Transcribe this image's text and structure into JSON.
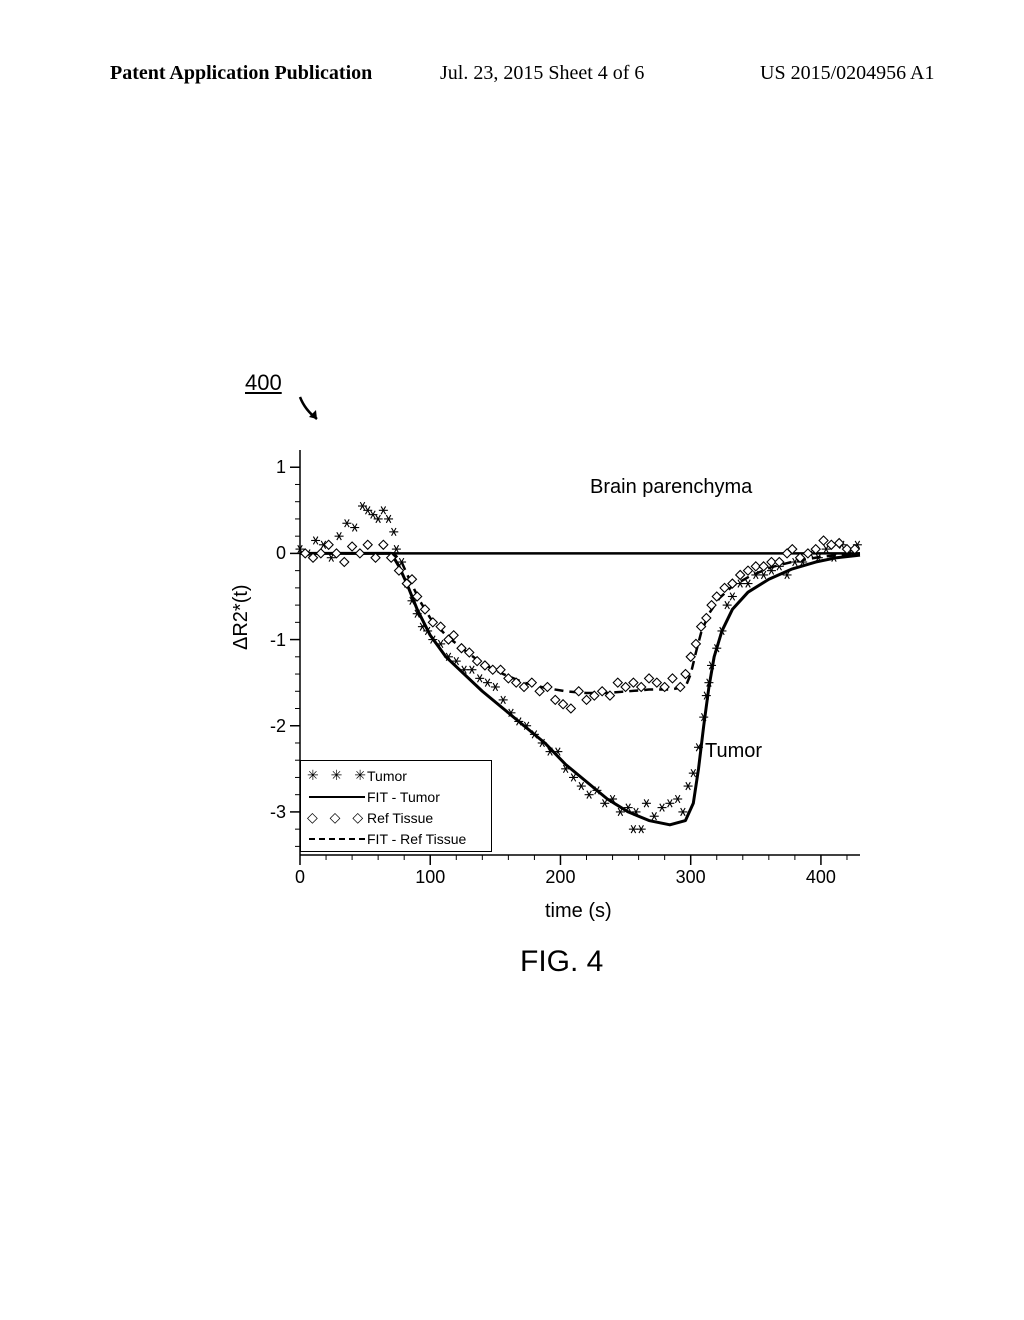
{
  "header": {
    "left": "Patent Application Publication",
    "mid": "Jul. 23, 2015  Sheet 4 of 6",
    "right": "US 2015/0204956 A1"
  },
  "figure": {
    "ref_number": "400",
    "caption": "FIG. 4",
    "annotations": {
      "brain": "Brain parenchyma",
      "tumor": "Tumor"
    },
    "chart": {
      "type": "scatter-with-fit",
      "xlabel": "time (s)",
      "ylabel": "ΔR2*(t)",
      "xlim": [
        0,
        430
      ],
      "ylim": [
        -3.5,
        1.2
      ],
      "xticks": [
        0,
        100,
        200,
        300,
        400
      ],
      "yticks": [
        -3,
        -2,
        -1,
        0,
        1
      ],
      "background_color": "#ffffff",
      "axis_color": "#000000",
      "legend": {
        "rows": [
          {
            "symbol": "asterisk",
            "label": "Tumor"
          },
          {
            "symbol": "solid",
            "label": "FIT - Tumor"
          },
          {
            "symbol": "diamond",
            "label": "Ref Tissue"
          },
          {
            "symbol": "dash",
            "label": "FIT - Ref Tissue"
          }
        ]
      },
      "series": {
        "tumor_points": {
          "marker": "asterisk",
          "color": "#000000",
          "data": [
            [
              0,
              0.05
            ],
            [
              6,
              0.0
            ],
            [
              12,
              0.15
            ],
            [
              18,
              0.1
            ],
            [
              24,
              -0.05
            ],
            [
              30,
              0.2
            ],
            [
              36,
              0.35
            ],
            [
              42,
              0.3
            ],
            [
              48,
              0.55
            ],
            [
              52,
              0.5
            ],
            [
              56,
              0.45
            ],
            [
              60,
              0.4
            ],
            [
              64,
              0.5
            ],
            [
              68,
              0.4
            ],
            [
              72,
              0.25
            ],
            [
              74,
              0.05
            ],
            [
              78,
              -0.1
            ],
            [
              82,
              -0.35
            ],
            [
              86,
              -0.55
            ],
            [
              90,
              -0.7
            ],
            [
              94,
              -0.85
            ],
            [
              98,
              -0.9
            ],
            [
              102,
              -1.0
            ],
            [
              108,
              -1.05
            ],
            [
              114,
              -1.2
            ],
            [
              120,
              -1.25
            ],
            [
              126,
              -1.35
            ],
            [
              132,
              -1.35
            ],
            [
              138,
              -1.45
            ],
            [
              144,
              -1.5
            ],
            [
              150,
              -1.55
            ],
            [
              156,
              -1.7
            ],
            [
              162,
              -1.85
            ],
            [
              168,
              -1.95
            ],
            [
              174,
              -2.0
            ],
            [
              180,
              -2.1
            ],
            [
              186,
              -2.2
            ],
            [
              192,
              -2.3
            ],
            [
              198,
              -2.3
            ],
            [
              204,
              -2.5
            ],
            [
              210,
              -2.6
            ],
            [
              216,
              -2.7
            ],
            [
              222,
              -2.8
            ],
            [
              228,
              -2.75
            ],
            [
              234,
              -2.9
            ],
            [
              240,
              -2.85
            ],
            [
              246,
              -3.0
            ],
            [
              252,
              -2.95
            ],
            [
              256,
              -3.2
            ],
            [
              258,
              -3.0
            ],
            [
              262,
              -3.2
            ],
            [
              266,
              -2.9
            ],
            [
              272,
              -3.05
            ],
            [
              278,
              -2.95
            ],
            [
              284,
              -2.9
            ],
            [
              290,
              -2.85
            ],
            [
              294,
              -3.0
            ],
            [
              298,
              -2.7
            ],
            [
              302,
              -2.55
            ],
            [
              306,
              -2.25
            ],
            [
              310,
              -1.9
            ],
            [
              312,
              -1.65
            ],
            [
              314,
              -1.5
            ],
            [
              316,
              -1.3
            ],
            [
              320,
              -1.1
            ],
            [
              324,
              -0.9
            ],
            [
              328,
              -0.6
            ],
            [
              332,
              -0.5
            ],
            [
              338,
              -0.35
            ],
            [
              344,
              -0.35
            ],
            [
              350,
              -0.25
            ],
            [
              356,
              -0.25
            ],
            [
              362,
              -0.2
            ],
            [
              368,
              -0.15
            ],
            [
              374,
              -0.25
            ],
            [
              380,
              -0.1
            ],
            [
              386,
              -0.1
            ],
            [
              392,
              0.0
            ],
            [
              398,
              -0.05
            ],
            [
              404,
              0.05
            ],
            [
              410,
              -0.05
            ],
            [
              416,
              0.1
            ],
            [
              422,
              0.0
            ],
            [
              428,
              0.1
            ]
          ]
        },
        "ref_points": {
          "marker": "diamond",
          "color": "#000000",
          "data": [
            [
              4,
              0.0
            ],
            [
              10,
              -0.05
            ],
            [
              16,
              0.0
            ],
            [
              22,
              0.1
            ],
            [
              28,
              0.0
            ],
            [
              34,
              -0.1
            ],
            [
              40,
              0.08
            ],
            [
              46,
              0.0
            ],
            [
              52,
              0.1
            ],
            [
              58,
              -0.05
            ],
            [
              64,
              0.1
            ],
            [
              70,
              -0.05
            ],
            [
              76,
              -0.2
            ],
            [
              82,
              -0.35
            ],
            [
              86,
              -0.3
            ],
            [
              90,
              -0.5
            ],
            [
              96,
              -0.65
            ],
            [
              102,
              -0.8
            ],
            [
              108,
              -0.85
            ],
            [
              114,
              -1.0
            ],
            [
              118,
              -0.95
            ],
            [
              124,
              -1.1
            ],
            [
              130,
              -1.15
            ],
            [
              136,
              -1.25
            ],
            [
              142,
              -1.3
            ],
            [
              148,
              -1.35
            ],
            [
              154,
              -1.35
            ],
            [
              160,
              -1.45
            ],
            [
              166,
              -1.5
            ],
            [
              172,
              -1.55
            ],
            [
              178,
              -1.5
            ],
            [
              184,
              -1.6
            ],
            [
              190,
              -1.55
            ],
            [
              196,
              -1.7
            ],
            [
              202,
              -1.75
            ],
            [
              208,
              -1.8
            ],
            [
              214,
              -1.6
            ],
            [
              220,
              -1.7
            ],
            [
              226,
              -1.65
            ],
            [
              232,
              -1.6
            ],
            [
              238,
              -1.65
            ],
            [
              244,
              -1.5
            ],
            [
              250,
              -1.55
            ],
            [
              256,
              -1.5
            ],
            [
              262,
              -1.55
            ],
            [
              268,
              -1.45
            ],
            [
              274,
              -1.5
            ],
            [
              280,
              -1.55
            ],
            [
              286,
              -1.45
            ],
            [
              292,
              -1.55
            ],
            [
              296,
              -1.4
            ],
            [
              300,
              -1.2
            ],
            [
              304,
              -1.05
            ],
            [
              308,
              -0.85
            ],
            [
              312,
              -0.75
            ],
            [
              316,
              -0.6
            ],
            [
              320,
              -0.5
            ],
            [
              326,
              -0.4
            ],
            [
              332,
              -0.35
            ],
            [
              338,
              -0.25
            ],
            [
              344,
              -0.2
            ],
            [
              350,
              -0.15
            ],
            [
              356,
              -0.15
            ],
            [
              362,
              -0.1
            ],
            [
              368,
              -0.1
            ],
            [
              374,
              0.0
            ],
            [
              378,
              0.05
            ],
            [
              384,
              -0.05
            ],
            [
              390,
              0.0
            ],
            [
              396,
              0.05
            ],
            [
              402,
              0.15
            ],
            [
              408,
              0.1
            ],
            [
              414,
              0.12
            ],
            [
              420,
              0.05
            ],
            [
              426,
              0.05
            ]
          ]
        },
        "fit_tumor": {
          "style": "solid",
          "width": 3,
          "color": "#000000",
          "data": [
            [
              0,
              0.0
            ],
            [
              60,
              0.0
            ],
            [
              70,
              0.0
            ],
            [
              76,
              -0.15
            ],
            [
              82,
              -0.35
            ],
            [
              90,
              -0.65
            ],
            [
              100,
              -0.95
            ],
            [
              112,
              -1.2
            ],
            [
              126,
              -1.4
            ],
            [
              140,
              -1.6
            ],
            [
              156,
              -1.8
            ],
            [
              172,
              -2.0
            ],
            [
              188,
              -2.2
            ],
            [
              204,
              -2.45
            ],
            [
              220,
              -2.65
            ],
            [
              236,
              -2.85
            ],
            [
              252,
              -3.0
            ],
            [
              268,
              -3.1
            ],
            [
              284,
              -3.15
            ],
            [
              296,
              -3.1
            ],
            [
              302,
              -2.9
            ],
            [
              306,
              -2.5
            ],
            [
              310,
              -2.0
            ],
            [
              314,
              -1.55
            ],
            [
              318,
              -1.2
            ],
            [
              324,
              -0.9
            ],
            [
              332,
              -0.65
            ],
            [
              344,
              -0.45
            ],
            [
              360,
              -0.3
            ],
            [
              378,
              -0.18
            ],
            [
              396,
              -0.1
            ],
            [
              412,
              -0.05
            ],
            [
              430,
              -0.02
            ]
          ]
        },
        "fit_ref": {
          "style": "dashed",
          "width": 2.5,
          "color": "#000000",
          "data": [
            [
              0,
              0.0
            ],
            [
              60,
              0.0
            ],
            [
              72,
              0.0
            ],
            [
              78,
              -0.1
            ],
            [
              84,
              -0.3
            ],
            [
              92,
              -0.55
            ],
            [
              100,
              -0.75
            ],
            [
              112,
              -0.95
            ],
            [
              126,
              -1.12
            ],
            [
              140,
              -1.28
            ],
            [
              156,
              -1.4
            ],
            [
              172,
              -1.5
            ],
            [
              188,
              -1.56
            ],
            [
              204,
              -1.6
            ],
            [
              220,
              -1.62
            ],
            [
              236,
              -1.62
            ],
            [
              252,
              -1.6
            ],
            [
              268,
              -1.58
            ],
            [
              284,
              -1.58
            ],
            [
              296,
              -1.55
            ],
            [
              300,
              -1.4
            ],
            [
              304,
              -1.15
            ],
            [
              308,
              -0.92
            ],
            [
              314,
              -0.7
            ],
            [
              322,
              -0.52
            ],
            [
              332,
              -0.38
            ],
            [
              346,
              -0.26
            ],
            [
              362,
              -0.16
            ],
            [
              380,
              -0.09
            ],
            [
              400,
              -0.04
            ],
            [
              420,
              -0.01
            ],
            [
              430,
              0.0
            ]
          ]
        }
      }
    }
  }
}
